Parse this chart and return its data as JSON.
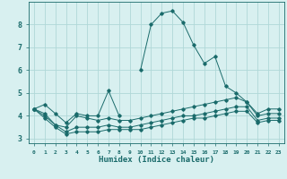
{
  "x": [
    0,
    1,
    2,
    3,
    4,
    5,
    6,
    7,
    8,
    9,
    10,
    11,
    12,
    13,
    14,
    15,
    16,
    17,
    18,
    19,
    20,
    21,
    22,
    23
  ],
  "line1": [
    4.3,
    4.5,
    4.1,
    3.7,
    4.1,
    4.0,
    4.0,
    5.1,
    4.0,
    null,
    6.0,
    8.0,
    8.5,
    8.6,
    8.1,
    7.1,
    6.3,
    6.6,
    5.3,
    5.0,
    4.6,
    4.1,
    4.3,
    4.3
  ],
  "line2": [
    4.3,
    4.1,
    3.6,
    3.5,
    4.0,
    3.9,
    3.8,
    3.9,
    3.8,
    3.8,
    3.9,
    4.0,
    4.1,
    4.2,
    4.3,
    4.4,
    4.5,
    4.6,
    4.7,
    4.8,
    4.6,
    4.0,
    4.1,
    4.1
  ],
  "line3": [
    4.3,
    4.0,
    3.6,
    3.3,
    3.5,
    3.5,
    3.5,
    3.6,
    3.5,
    3.5,
    3.6,
    3.7,
    3.8,
    3.9,
    4.0,
    4.0,
    4.1,
    4.2,
    4.3,
    4.4,
    4.4,
    3.8,
    3.9,
    3.9
  ],
  "line4": [
    4.3,
    3.9,
    3.5,
    3.2,
    3.3,
    3.3,
    3.3,
    3.4,
    3.4,
    3.4,
    3.4,
    3.5,
    3.6,
    3.7,
    3.8,
    3.9,
    3.9,
    4.0,
    4.1,
    4.2,
    4.2,
    3.7,
    3.8,
    3.8
  ],
  "line_color": "#1a6b6b",
  "bg_color": "#d8f0f0",
  "grid_color": "#b0d8d8",
  "xlabel": "Humidex (Indice chaleur)",
  "ylim": [
    2.8,
    9.0
  ],
  "xlim": [
    -0.5,
    23.5
  ],
  "yticks": [
    3,
    4,
    5,
    6,
    7,
    8
  ],
  "xtick_labels": [
    "0",
    "1",
    "2",
    "3",
    "4",
    "5",
    "6",
    "7",
    "8",
    "9",
    "10",
    "11",
    "12",
    "13",
    "14",
    "15",
    "16",
    "17",
    "18",
    "19",
    "20",
    "21",
    "22",
    "23"
  ]
}
